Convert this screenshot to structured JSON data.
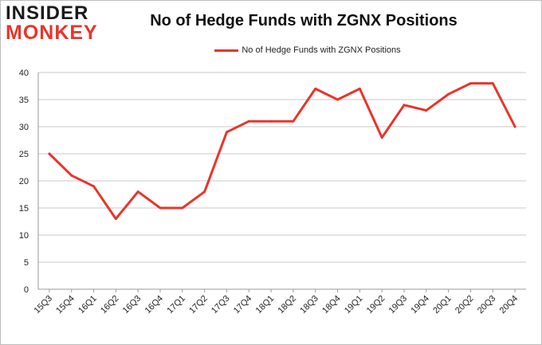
{
  "logo": {
    "line1": "INSIDER",
    "line2": "MONKEY"
  },
  "chart_data": {
    "type": "line",
    "title": "No of Hedge Funds with ZGNX Positions",
    "xlabel": "",
    "ylabel": "",
    "categories": [
      "15Q3",
      "15Q4",
      "16Q1",
      "16Q2",
      "16Q3",
      "16Q4",
      "17Q1",
      "17Q2",
      "17Q3",
      "17Q4",
      "18Q1",
      "18Q2",
      "18Q3",
      "18Q4",
      "19Q1",
      "19Q2",
      "19Q3",
      "19Q4",
      "20Q1",
      "20Q2",
      "20Q3",
      "20Q4"
    ],
    "series": [
      {
        "name": "No of Hedge Funds with ZGNX Positions",
        "color": "#e8352b",
        "values": [
          25,
          21,
          19,
          13,
          18,
          15,
          15,
          18,
          29,
          31,
          31,
          31,
          37,
          35,
          37,
          28,
          34,
          33,
          36,
          38,
          38,
          30
        ]
      }
    ],
    "ylim": [
      0,
      40
    ],
    "yticks": [
      0,
      5,
      10,
      15,
      20,
      25,
      30,
      35,
      40
    ],
    "grid": true,
    "legend": "top-center"
  }
}
